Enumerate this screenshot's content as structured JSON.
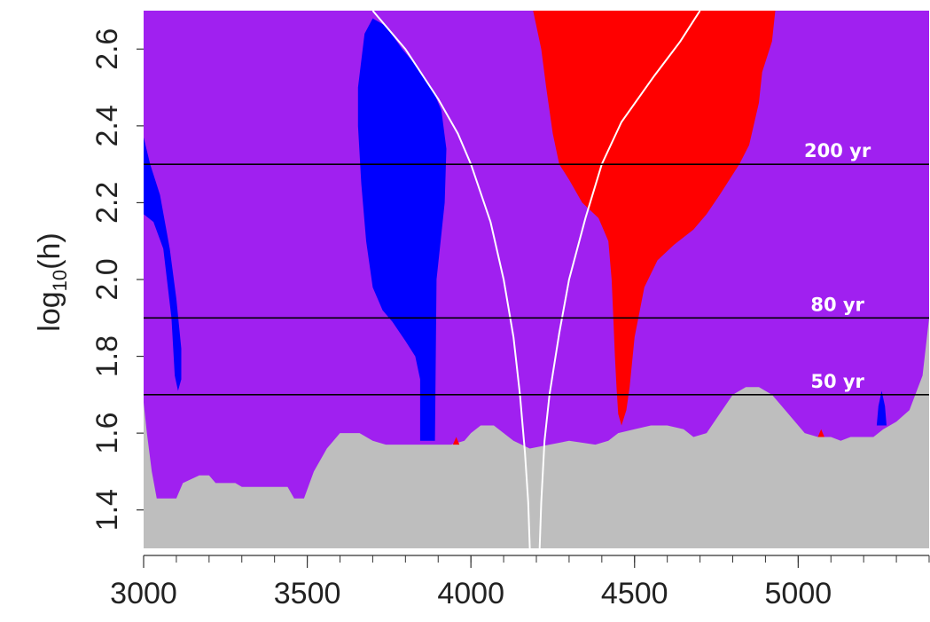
{
  "chart_data": {
    "type": "heatmap",
    "title": "",
    "xlabel": "",
    "ylabel_base": "log",
    "ylabel_sub": "10",
    "ylabel_tail": "(h)",
    "xlim": [
      3000,
      5400
    ],
    "ylim": [
      1.3,
      2.7
    ],
    "x_ticks": [
      3000,
      3500,
      4000,
      4500,
      5000
    ],
    "x_tick_labels": [
      "3000",
      "3500",
      "4000",
      "4500",
      "5000"
    ],
    "x_minor_step": 100,
    "y_ticks": [
      1.4,
      1.6,
      1.8,
      2.0,
      2.2,
      2.4,
      2.6
    ],
    "y_tick_labels": [
      "1.4",
      "1.6",
      "1.8",
      "2.0",
      "2.2",
      "2.4",
      "2.6"
    ],
    "colors": {
      "background": "#a020f0",
      "below_threshold": "#bebebe",
      "blue_region": "#0000ff",
      "red_region": "#ff0000",
      "curve": "#ffffff",
      "hline": "#000000"
    },
    "hlines": [
      {
        "y": 2.3,
        "label": "200 yr",
        "label_x": 5120
      },
      {
        "y": 1.9,
        "label": "80 yr",
        "label_x": 5120
      },
      {
        "y": 1.7,
        "label": "50 yr",
        "label_x": 5120
      }
    ],
    "gray_floor": [
      [
        3000,
        1.68
      ],
      [
        3010,
        1.6
      ],
      [
        3025,
        1.5
      ],
      [
        3040,
        1.43
      ],
      [
        3100,
        1.43
      ],
      [
        3120,
        1.47
      ],
      [
        3170,
        1.49
      ],
      [
        3200,
        1.49
      ],
      [
        3220,
        1.47
      ],
      [
        3280,
        1.47
      ],
      [
        3300,
        1.46
      ],
      [
        3440,
        1.46
      ],
      [
        3460,
        1.43
      ],
      [
        3490,
        1.43
      ],
      [
        3520,
        1.5
      ],
      [
        3560,
        1.56
      ],
      [
        3600,
        1.6
      ],
      [
        3660,
        1.6
      ],
      [
        3700,
        1.58
      ],
      [
        3740,
        1.57
      ],
      [
        3860,
        1.57
      ],
      [
        3940,
        1.57
      ],
      [
        3980,
        1.58
      ],
      [
        4000,
        1.6
      ],
      [
        4030,
        1.62
      ],
      [
        4070,
        1.62
      ],
      [
        4100,
        1.6
      ],
      [
        4130,
        1.58
      ],
      [
        4180,
        1.56
      ],
      [
        4240,
        1.57
      ],
      [
        4300,
        1.58
      ],
      [
        4380,
        1.57
      ],
      [
        4420,
        1.58
      ],
      [
        4450,
        1.6
      ],
      [
        4500,
        1.61
      ],
      [
        4550,
        1.62
      ],
      [
        4600,
        1.62
      ],
      [
        4650,
        1.61
      ],
      [
        4680,
        1.59
      ],
      [
        4720,
        1.6
      ],
      [
        4760,
        1.65
      ],
      [
        4800,
        1.7
      ],
      [
        4840,
        1.72
      ],
      [
        4880,
        1.72
      ],
      [
        4920,
        1.7
      ],
      [
        4970,
        1.65
      ],
      [
        5020,
        1.6
      ],
      [
        5060,
        1.59
      ],
      [
        5100,
        1.59
      ],
      [
        5130,
        1.58
      ],
      [
        5160,
        1.59
      ],
      [
        5230,
        1.59
      ],
      [
        5260,
        1.61
      ],
      [
        5300,
        1.63
      ],
      [
        5340,
        1.66
      ],
      [
        5380,
        1.75
      ],
      [
        5400,
        1.9
      ]
    ],
    "blue_regions": [
      [
        [
          3000,
          2.37
        ],
        [
          3020,
          2.3
        ],
        [
          3050,
          2.22
        ],
        [
          3080,
          2.08
        ],
        [
          3100,
          1.95
        ],
        [
          3115,
          1.82
        ],
        [
          3115,
          1.74
        ],
        [
          3105,
          1.71
        ],
        [
          3095,
          1.75
        ],
        [
          3085,
          1.9
        ],
        [
          3060,
          2.08
        ],
        [
          3030,
          2.15
        ],
        [
          3000,
          2.17
        ]
      ],
      [
        [
          3655,
          2.5
        ],
        [
          3675,
          2.64
        ],
        [
          3700,
          2.68
        ],
        [
          3740,
          2.66
        ],
        [
          3790,
          2.6
        ],
        [
          3840,
          2.55
        ],
        [
          3880,
          2.5
        ],
        [
          3910,
          2.44
        ],
        [
          3925,
          2.34
        ],
        [
          3920,
          2.2
        ],
        [
          3905,
          2.08
        ],
        [
          3895,
          2.0
        ],
        [
          3890,
          1.58
        ],
        [
          3845,
          1.58
        ],
        [
          3845,
          1.74
        ],
        [
          3830,
          1.8
        ],
        [
          3800,
          1.84
        ],
        [
          3760,
          1.89
        ],
        [
          3730,
          1.92
        ],
        [
          3700,
          1.98
        ],
        [
          3680,
          2.1
        ],
        [
          3665,
          2.25
        ],
        [
          3655,
          2.4
        ]
      ],
      [
        [
          5240,
          1.62
        ],
        [
          5245,
          1.67
        ],
        [
          5255,
          1.71
        ],
        [
          5265,
          1.67
        ],
        [
          5270,
          1.62
        ]
      ]
    ],
    "red_regions": [
      [
        [
          4190,
          2.7
        ],
        [
          4930,
          2.7
        ],
        [
          4920,
          2.62
        ],
        [
          4890,
          2.54
        ],
        [
          4880,
          2.46
        ],
        [
          4850,
          2.35
        ],
        [
          4820,
          2.3
        ],
        [
          4760,
          2.22
        ],
        [
          4720,
          2.17
        ],
        [
          4680,
          2.13
        ],
        [
          4620,
          2.09
        ],
        [
          4570,
          2.05
        ],
        [
          4530,
          1.98
        ],
        [
          4500,
          1.85
        ],
        [
          4485,
          1.72
        ],
        [
          4475,
          1.66
        ],
        [
          4460,
          1.62
        ],
        [
          4450,
          1.65
        ],
        [
          4445,
          1.72
        ],
        [
          4440,
          1.8
        ],
        [
          4435,
          1.9
        ],
        [
          4430,
          2.0
        ],
        [
          4420,
          2.1
        ],
        [
          4390,
          2.16
        ],
        [
          4340,
          2.2
        ],
        [
          4300,
          2.26
        ],
        [
          4270,
          2.3
        ],
        [
          4250,
          2.38
        ],
        [
          4230,
          2.5
        ],
        [
          4215,
          2.6
        ]
      ],
      [
        [
          3945,
          1.57
        ],
        [
          3955,
          1.59
        ],
        [
          3965,
          1.57
        ]
      ],
      [
        [
          5060,
          1.59
        ],
        [
          5070,
          1.61
        ],
        [
          5080,
          1.59
        ]
      ]
    ],
    "curves": [
      [
        [
          3700,
          2.7
        ],
        [
          3800,
          2.6
        ],
        [
          3900,
          2.47
        ],
        [
          3960,
          2.38
        ],
        [
          4000,
          2.3
        ],
        [
          4060,
          2.15
        ],
        [
          4100,
          2.0
        ],
        [
          4130,
          1.85
        ],
        [
          4150,
          1.7
        ],
        [
          4165,
          1.55
        ],
        [
          4175,
          1.42
        ],
        [
          4180,
          1.3
        ]
      ],
      [
        [
          4210,
          1.3
        ],
        [
          4215,
          1.42
        ],
        [
          4225,
          1.58
        ],
        [
          4240,
          1.7
        ],
        [
          4270,
          1.86
        ],
        [
          4300,
          2.0
        ],
        [
          4350,
          2.16
        ],
        [
          4400,
          2.3
        ],
        [
          4460,
          2.41
        ],
        [
          4560,
          2.53
        ],
        [
          4640,
          2.62
        ],
        [
          4700,
          2.7
        ]
      ]
    ]
  }
}
